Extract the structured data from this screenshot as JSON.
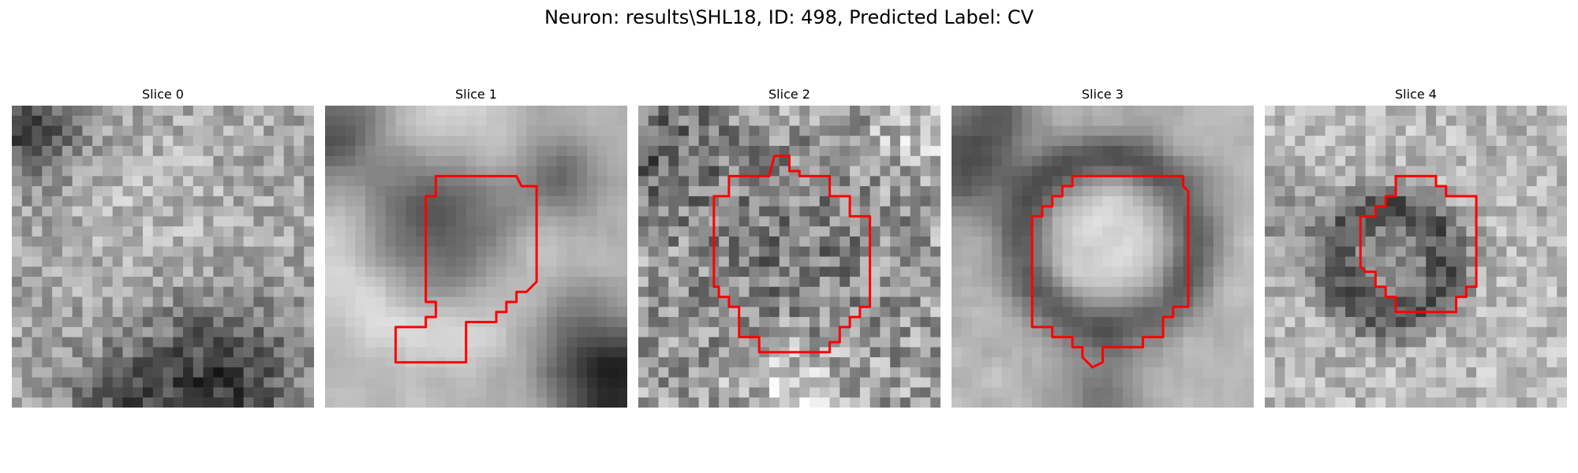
{
  "figure": {
    "title": "Neuron: results\\SHL18, ID: 498, Predicted Label: CV"
  },
  "slices": [
    {
      "title": "Slice 0",
      "has_contour": false
    },
    {
      "title": "Slice 1",
      "has_contour": true
    },
    {
      "title": "Slice 2",
      "has_contour": true
    },
    {
      "title": "Slice 3",
      "has_contour": true
    },
    {
      "title": "Slice 4",
      "has_contour": true
    }
  ],
  "colors": {
    "contour": "#ff0000",
    "background": "#ffffff"
  }
}
